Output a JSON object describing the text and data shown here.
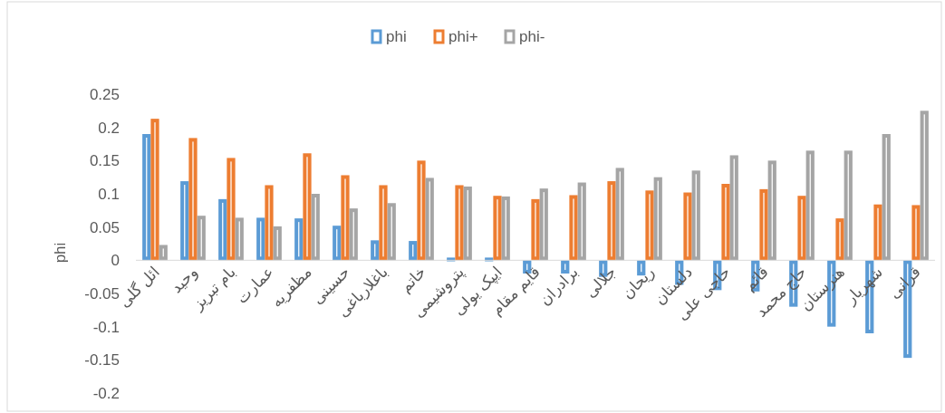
{
  "chart_data": {
    "type": "bar",
    "ylabel": "phi",
    "legend": "top",
    "categories": [
      "ائل گلی",
      "وحید",
      "بام تبریز",
      "عمارت",
      "مظفریه",
      "حسینی",
      "باغلارباغی",
      "خاتم",
      "پتروشیمی",
      "ایپک یولی",
      "قایم مقام",
      "برادران",
      "جلالی",
      "ریحان",
      "دلستان",
      "حاجی علی",
      "قائم",
      "حاج محمد",
      "هنرستان",
      "شهریار",
      "قرانی"
    ],
    "series": [
      {
        "name": "phi",
        "color": "#5b9bd5",
        "values": [
          0.19,
          0.119,
          0.092,
          0.064,
          0.063,
          0.052,
          0.03,
          0.029,
          0.004,
          0.004,
          -0.02,
          -0.02,
          -0.025,
          -0.023,
          -0.037,
          -0.045,
          -0.047,
          -0.07,
          -0.1,
          -0.11,
          -0.147
        ]
      },
      {
        "name": "phi+",
        "color": "#ed7d31",
        "values": [
          0.213,
          0.184,
          0.154,
          0.113,
          0.161,
          0.128,
          0.113,
          0.15,
          0.113,
          0.097,
          0.092,
          0.098,
          0.119,
          0.105,
          0.102,
          0.115,
          0.107,
          0.097,
          0.063,
          0.084,
          0.083
        ]
      },
      {
        "name": "phi-",
        "color": "#a5a5a5",
        "values": [
          0.023,
          0.067,
          0.064,
          0.051,
          0.1,
          0.078,
          0.086,
          0.124,
          0.111,
          0.096,
          0.108,
          0.117,
          0.139,
          0.125,
          0.135,
          0.158,
          0.15,
          0.165,
          0.165,
          0.19,
          0.225
        ]
      }
    ],
    "ylim": [
      -0.2,
      0.25
    ],
    "yticks": [
      -0.2,
      -0.15,
      -0.1,
      -0.05,
      0,
      0.05,
      0.1,
      0.15,
      0.2,
      0.25
    ],
    "grid": false
  }
}
